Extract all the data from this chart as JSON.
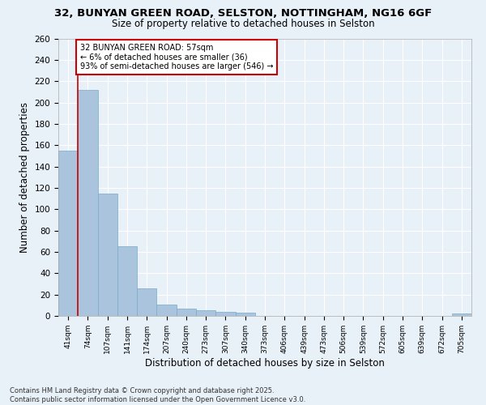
{
  "title_line1": "32, BUNYAN GREEN ROAD, SELSTON, NOTTINGHAM, NG16 6GF",
  "title_line2": "Size of property relative to detached houses in Selston",
  "xlabel": "Distribution of detached houses by size in Selston",
  "ylabel": "Number of detached properties",
  "footer_line1": "Contains HM Land Registry data © Crown copyright and database right 2025.",
  "footer_line2": "Contains public sector information licensed under the Open Government Licence v3.0.",
  "categories": [
    "41sqm",
    "74sqm",
    "107sqm",
    "141sqm",
    "174sqm",
    "207sqm",
    "240sqm",
    "273sqm",
    "307sqm",
    "340sqm",
    "373sqm",
    "406sqm",
    "439sqm",
    "473sqm",
    "506sqm",
    "539sqm",
    "572sqm",
    "605sqm",
    "639sqm",
    "672sqm",
    "705sqm"
  ],
  "values": [
    155,
    212,
    115,
    65,
    26,
    11,
    7,
    5,
    4,
    3,
    0,
    0,
    0,
    0,
    0,
    0,
    0,
    0,
    0,
    0,
    2
  ],
  "bar_color": "#aac4dd",
  "bar_edge_color": "#7aaac8",
  "background_color": "#e8f0f8",
  "grid_color": "#ffffff",
  "annotation_text_line1": "32 BUNYAN GREEN ROAD: 57sqm",
  "annotation_text_line2": "← 6% of detached houses are smaller (36)",
  "annotation_text_line3": "93% of semi-detached houses are larger (546) →",
  "annotation_box_color": "#ffffff",
  "annotation_box_edge_color": "#cc0000",
  "vline_x": 0.5,
  "vline_color": "#cc0000",
  "ylim": [
    0,
    260
  ],
  "yticks": [
    0,
    20,
    40,
    60,
    80,
    100,
    120,
    140,
    160,
    180,
    200,
    220,
    240,
    260
  ]
}
